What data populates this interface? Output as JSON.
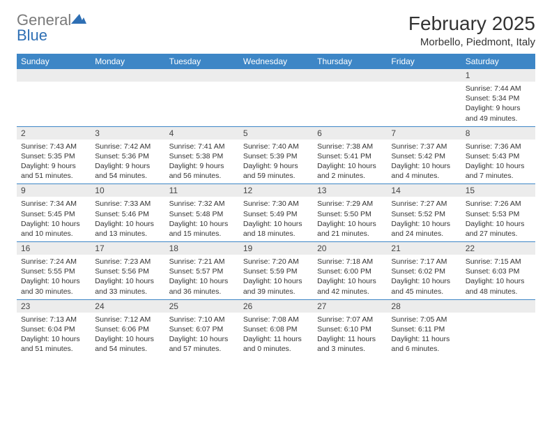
{
  "brand": {
    "part1": "General",
    "part2": "Blue"
  },
  "title": "February 2025",
  "subtitle": "Morbello, Piedmont, Italy",
  "colors": {
    "header_bg": "#3d86c6",
    "header_text": "#ffffff",
    "daynum_bg": "#ececec",
    "row_border": "#3d86c6",
    "brand_gray": "#7a7a7a",
    "brand_blue": "#2e6fb4"
  },
  "day_headers": [
    "Sunday",
    "Monday",
    "Tuesday",
    "Wednesday",
    "Thursday",
    "Friday",
    "Saturday"
  ],
  "weeks": [
    [
      null,
      null,
      null,
      null,
      null,
      null,
      {
        "n": "1",
        "sr": "7:44 AM",
        "ss": "5:34 PM",
        "dl": "9 hours and 49 minutes."
      }
    ],
    [
      {
        "n": "2",
        "sr": "7:43 AM",
        "ss": "5:35 PM",
        "dl": "9 hours and 51 minutes."
      },
      {
        "n": "3",
        "sr": "7:42 AM",
        "ss": "5:36 PM",
        "dl": "9 hours and 54 minutes."
      },
      {
        "n": "4",
        "sr": "7:41 AM",
        "ss": "5:38 PM",
        "dl": "9 hours and 56 minutes."
      },
      {
        "n": "5",
        "sr": "7:40 AM",
        "ss": "5:39 PM",
        "dl": "9 hours and 59 minutes."
      },
      {
        "n": "6",
        "sr": "7:38 AM",
        "ss": "5:41 PM",
        "dl": "10 hours and 2 minutes."
      },
      {
        "n": "7",
        "sr": "7:37 AM",
        "ss": "5:42 PM",
        "dl": "10 hours and 4 minutes."
      },
      {
        "n": "8",
        "sr": "7:36 AM",
        "ss": "5:43 PM",
        "dl": "10 hours and 7 minutes."
      }
    ],
    [
      {
        "n": "9",
        "sr": "7:34 AM",
        "ss": "5:45 PM",
        "dl": "10 hours and 10 minutes."
      },
      {
        "n": "10",
        "sr": "7:33 AM",
        "ss": "5:46 PM",
        "dl": "10 hours and 13 minutes."
      },
      {
        "n": "11",
        "sr": "7:32 AM",
        "ss": "5:48 PM",
        "dl": "10 hours and 15 minutes."
      },
      {
        "n": "12",
        "sr": "7:30 AM",
        "ss": "5:49 PM",
        "dl": "10 hours and 18 minutes."
      },
      {
        "n": "13",
        "sr": "7:29 AM",
        "ss": "5:50 PM",
        "dl": "10 hours and 21 minutes."
      },
      {
        "n": "14",
        "sr": "7:27 AM",
        "ss": "5:52 PM",
        "dl": "10 hours and 24 minutes."
      },
      {
        "n": "15",
        "sr": "7:26 AM",
        "ss": "5:53 PM",
        "dl": "10 hours and 27 minutes."
      }
    ],
    [
      {
        "n": "16",
        "sr": "7:24 AM",
        "ss": "5:55 PM",
        "dl": "10 hours and 30 minutes."
      },
      {
        "n": "17",
        "sr": "7:23 AM",
        "ss": "5:56 PM",
        "dl": "10 hours and 33 minutes."
      },
      {
        "n": "18",
        "sr": "7:21 AM",
        "ss": "5:57 PM",
        "dl": "10 hours and 36 minutes."
      },
      {
        "n": "19",
        "sr": "7:20 AM",
        "ss": "5:59 PM",
        "dl": "10 hours and 39 minutes."
      },
      {
        "n": "20",
        "sr": "7:18 AM",
        "ss": "6:00 PM",
        "dl": "10 hours and 42 minutes."
      },
      {
        "n": "21",
        "sr": "7:17 AM",
        "ss": "6:02 PM",
        "dl": "10 hours and 45 minutes."
      },
      {
        "n": "22",
        "sr": "7:15 AM",
        "ss": "6:03 PM",
        "dl": "10 hours and 48 minutes."
      }
    ],
    [
      {
        "n": "23",
        "sr": "7:13 AM",
        "ss": "6:04 PM",
        "dl": "10 hours and 51 minutes."
      },
      {
        "n": "24",
        "sr": "7:12 AM",
        "ss": "6:06 PM",
        "dl": "10 hours and 54 minutes."
      },
      {
        "n": "25",
        "sr": "7:10 AM",
        "ss": "6:07 PM",
        "dl": "10 hours and 57 minutes."
      },
      {
        "n": "26",
        "sr": "7:08 AM",
        "ss": "6:08 PM",
        "dl": "11 hours and 0 minutes."
      },
      {
        "n": "27",
        "sr": "7:07 AM",
        "ss": "6:10 PM",
        "dl": "11 hours and 3 minutes."
      },
      {
        "n": "28",
        "sr": "7:05 AM",
        "ss": "6:11 PM",
        "dl": "11 hours and 6 minutes."
      },
      null
    ]
  ],
  "labels": {
    "sunrise": "Sunrise:",
    "sunset": "Sunset:",
    "daylight": "Daylight:"
  }
}
